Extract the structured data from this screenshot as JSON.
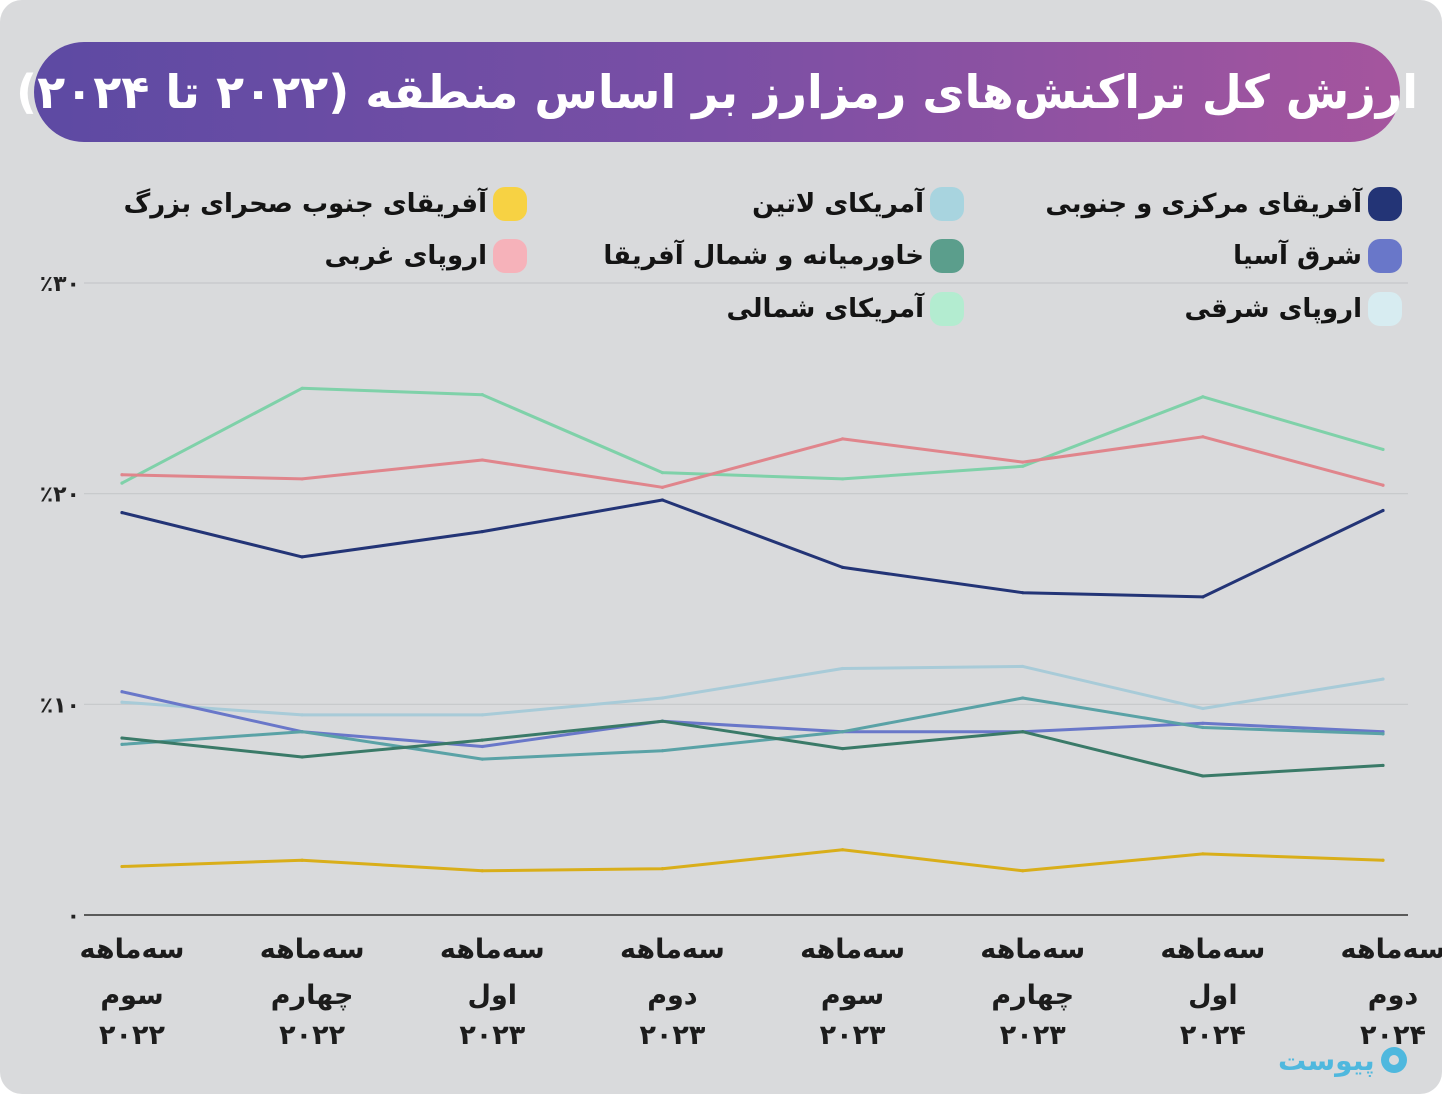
{
  "title": "ارزش کل تراکنش‌های رمزارز بر اساس منطقه (۲۰۲۲ تا ۲۰۲۴)",
  "logo_text": "پیوست",
  "chart_data": {
    "type": "line",
    "title": "ارزش کل تراکنش‌های رمزارز بر اساس منطقه (۲۰۲۲ تا ۲۰۲۴)",
    "xlabel": "",
    "ylabel": "",
    "ylim": [
      0,
      30
    ],
    "y_ticks": [
      {
        "value": 0,
        "label": "۰"
      },
      {
        "value": 10,
        "label": "٪۱۰"
      },
      {
        "value": 20,
        "label": "٪۲۰"
      },
      {
        "value": 30,
        "label": "٪۳۰"
      }
    ],
    "categories": [
      [
        "سه‌ماهه",
        "سوم",
        "۲۰۲۲"
      ],
      [
        "سه‌ماهه",
        "چهارم",
        "۲۰۲۲"
      ],
      [
        "سه‌ماهه",
        "اول",
        "۲۰۲۳"
      ],
      [
        "سه‌ماهه",
        "دوم",
        "۲۰۲۳"
      ],
      [
        "سه‌ماهه",
        "سوم",
        "۲۰۲۳"
      ],
      [
        "سه‌ماهه",
        "چهارم",
        "۲۰۲۳"
      ],
      [
        "سه‌ماهه",
        "اول",
        "۲۰۲۴"
      ],
      [
        "سه‌ماهه",
        "دوم",
        "۲۰۲۴"
      ]
    ],
    "series": [
      {
        "name": "آمریکای شمالی",
        "color": "#7fd1a9",
        "values": [
          20.5,
          25.0,
          24.7,
          21.0,
          20.7,
          21.3,
          24.6,
          22.1
        ]
      },
      {
        "name": "اروپای غربی",
        "color": "#e0858c",
        "values": [
          20.9,
          20.7,
          21.6,
          20.3,
          22.6,
          21.5,
          22.7,
          20.4
        ]
      },
      {
        "name": "آفریقای مرکزی و جنوبی",
        "color": "#233476",
        "values": [
          19.1,
          17.0,
          18.2,
          19.7,
          16.5,
          15.3,
          15.1,
          19.2
        ]
      },
      {
        "name": "اروپای شرقی",
        "color": "#a8cbd8",
        "values": [
          10.1,
          9.5,
          9.5,
          10.3,
          11.7,
          11.8,
          9.8,
          11.2
        ]
      },
      {
        "name": "شرق آسیا",
        "color": "#6977c9",
        "values": [
          10.6,
          8.7,
          8.0,
          9.2,
          8.7,
          8.7,
          9.1,
          8.7
        ]
      },
      {
        "name": "آمریکای لاتین",
        "color": "#5aa2a6",
        "values": [
          8.1,
          8.7,
          7.4,
          7.8,
          8.7,
          10.3,
          8.9,
          8.6
        ]
      },
      {
        "name": "خاورمیانه و شمال آفریقا",
        "color": "#3a7a68",
        "values": [
          8.4,
          7.5,
          8.3,
          9.2,
          7.9,
          8.7,
          6.6,
          7.1
        ]
      },
      {
        "name": "آفریقای جنوب صحرای بزرگ",
        "color": "#d9ae1a",
        "values": [
          2.3,
          2.6,
          2.1,
          2.2,
          3.1,
          2.1,
          2.9,
          2.6
        ]
      }
    ],
    "legend": [
      {
        "name": "آفریقای مرکزی و جنوبی",
        "color": "#233476"
      },
      {
        "name": "شرق آسیا",
        "color": "#6977c9"
      },
      {
        "name": "اروپای شرقی",
        "color": "#d7ecf1"
      },
      {
        "name": "آمریکای لاتین",
        "color": "#a8d4df"
      },
      {
        "name": "خاورمیانه و شمال آفریقا",
        "color": "#5b9e8c"
      },
      {
        "name": "آمریکای شمالی",
        "color": "#b3ecd0"
      },
      {
        "name": "آفریقای جنوب صحرای بزرگ",
        "color": "#f7d243"
      },
      {
        "name": "اروپای غربی",
        "color": "#f6b2ba"
      }
    ]
  }
}
